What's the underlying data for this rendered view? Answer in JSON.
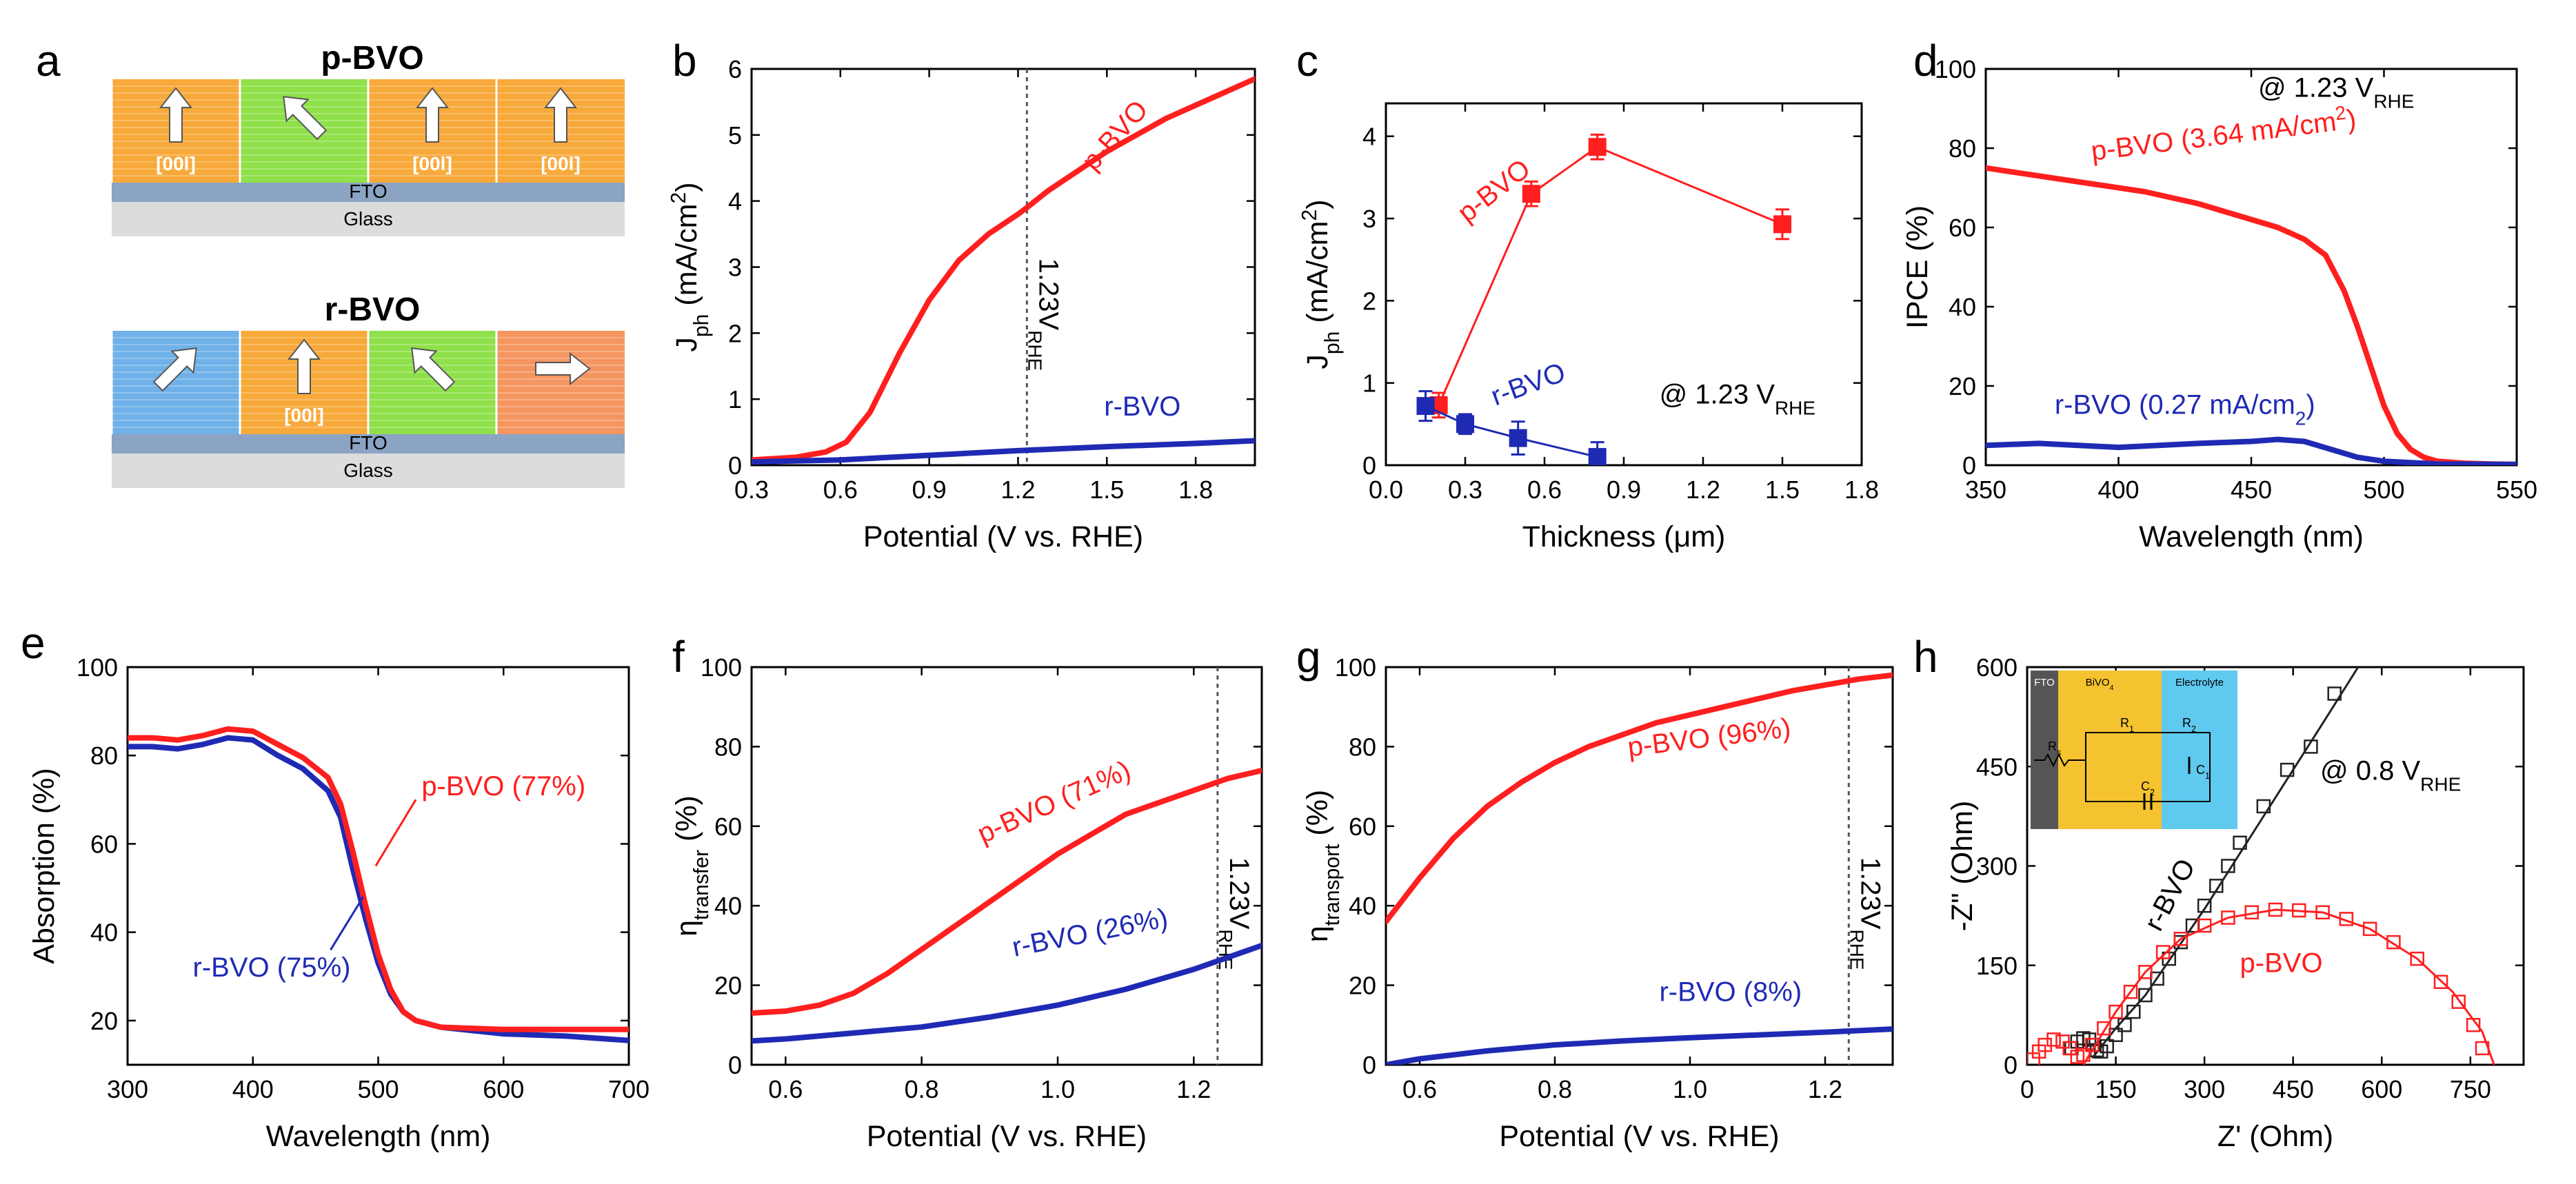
{
  "colors": {
    "p_bvo": "#ff1f1f",
    "r_bvo": "#1f2ab4",
    "orange": "#f7a93a",
    "green": "#8fe04a",
    "blue": "#6fb1e8",
    "coral": "#f59661",
    "fto": "#8ba4c4",
    "glass": "#dcdcdc",
    "ref_line": "#555555",
    "inset_bg_yellow": "#f5c330",
    "inset_bg_cyan": "#5fc9ef"
  },
  "panel_letters": {
    "a": "a",
    "b": "b",
    "c": "c",
    "d": "d",
    "e": "e",
    "f": "f",
    "g": "g",
    "h": "h"
  },
  "schematic": {
    "top_title": "p-BVO",
    "bottom_title": "r-BVO",
    "fto_label": "FTO",
    "glass_label": "Glass",
    "dir_label": "[00l]",
    "top_columns": [
      {
        "color": "orange",
        "arrow": "up",
        "label": "[00l]"
      },
      {
        "color": "green",
        "arrow": "up-left",
        "label": ""
      },
      {
        "color": "orange",
        "arrow": "up",
        "label": "[00l]"
      },
      {
        "color": "orange",
        "arrow": "up",
        "label": "[00l]"
      }
    ],
    "bottom_columns": [
      {
        "color": "blue",
        "arrow": "up-right",
        "label": ""
      },
      {
        "color": "orange",
        "arrow": "up",
        "label": "[00l]"
      },
      {
        "color": "green",
        "arrow": "up-left",
        "label": ""
      },
      {
        "color": "coral",
        "arrow": "right",
        "label": ""
      }
    ]
  },
  "chart_data": [
    {
      "id": "b",
      "type": "line",
      "xlabel": "Potential (V vs. RHE)",
      "ylabel": "J",
      "ylabel_sub": "ph",
      "ylabel_unit": " (mA/cm",
      "ylabel_sup": "2",
      "ylabel_end": ")",
      "xlim": [
        0.3,
        2.0
      ],
      "ylim": [
        0,
        6
      ],
      "xticks": [
        "0.3",
        "0.6",
        "0.9",
        "1.2",
        "1.5",
        "1.8"
      ],
      "xtick_values": [
        0.3,
        0.6,
        0.9,
        1.2,
        1.5,
        1.8
      ],
      "yticks": [
        "0",
        "1",
        "2",
        "3",
        "4",
        "5",
        "6"
      ],
      "ytick_values": [
        0,
        1,
        2,
        3,
        4,
        5,
        6
      ],
      "vline": {
        "x": 1.23,
        "label": "1.23V",
        "label_sub": "RHE"
      },
      "series": [
        {
          "name": "p-BVO",
          "color": "p_bvo",
          "x": [
            0.3,
            0.45,
            0.55,
            0.62,
            0.7,
            0.8,
            0.9,
            1.0,
            1.1,
            1.2,
            1.23,
            1.3,
            1.4,
            1.5,
            1.6,
            1.7,
            1.8,
            1.9,
            2.0
          ],
          "y": [
            0.08,
            0.12,
            0.2,
            0.35,
            0.8,
            1.7,
            2.5,
            3.1,
            3.5,
            3.8,
            3.9,
            4.15,
            4.45,
            4.75,
            5.0,
            5.25,
            5.45,
            5.65,
            5.85
          ]
        },
        {
          "name": "r-BVO",
          "color": "r_bvo",
          "x": [
            0.3,
            0.6,
            0.9,
            1.2,
            1.5,
            1.8,
            2.0
          ],
          "y": [
            0.05,
            0.08,
            0.15,
            0.22,
            0.28,
            0.33,
            0.37
          ]
        }
      ],
      "annotations": [
        {
          "text": "p-BVO",
          "color": "p_bvo",
          "x": 1.55,
          "y": 4.9,
          "rotate": -48
        },
        {
          "text": "r-BVO",
          "color": "r_bvo",
          "x": 1.62,
          "y": 0.75,
          "rotate": 0
        }
      ]
    },
    {
      "id": "c",
      "type": "scatter",
      "xlabel": "Thickness (μm)",
      "ylabel": "J",
      "ylabel_sub": "ph",
      "ylabel_unit": " (mA/cm",
      "ylabel_sup": "2",
      "ylabel_end": ")",
      "xlim": [
        0.0,
        1.8
      ],
      "ylim": [
        0,
        4.4
      ],
      "xticks": [
        "0.0",
        "0.3",
        "0.6",
        "0.9",
        "1.2",
        "1.5",
        "1.8"
      ],
      "xtick_values": [
        0.0,
        0.3,
        0.6,
        0.9,
        1.2,
        1.5,
        1.8
      ],
      "yticks": [
        "0",
        "1",
        "2",
        "3",
        "4"
      ],
      "ytick_values": [
        0,
        1,
        2,
        3,
        4
      ],
      "series": [
        {
          "name": "p-BVO",
          "color": "p_bvo",
          "x": [
            0.2,
            0.55,
            0.8,
            1.5
          ],
          "y": [
            0.73,
            3.3,
            3.87,
            2.93
          ],
          "err": [
            0.15,
            0.15,
            0.15,
            0.18
          ]
        },
        {
          "name": "r-BVO",
          "color": "r_bvo",
          "x": [
            0.15,
            0.3,
            0.5,
            0.8
          ],
          "y": [
            0.72,
            0.5,
            0.33,
            0.1
          ],
          "err": [
            0.18,
            0.12,
            0.2,
            0.18
          ]
        }
      ],
      "annotations": [
        {
          "text": "p-BVO",
          "color": "p_bvo",
          "x": 0.43,
          "y": 3.25,
          "rotate": -38
        },
        {
          "text": "r-BVO",
          "color": "r_bvo",
          "x": 0.55,
          "y": 0.88,
          "rotate": -20
        }
      ],
      "condition": {
        "text": "@ 1.23 V",
        "sub": "RHE",
        "x": 1.33,
        "y": 0.75
      }
    },
    {
      "id": "d",
      "type": "line",
      "xlabel": "Wavelength (nm)",
      "ylabel": "IPCE (%)",
      "xlim": [
        350,
        550
      ],
      "ylim": [
        0,
        100
      ],
      "xticks": [
        "350",
        "400",
        "450",
        "500",
        "550"
      ],
      "xtick_values": [
        350,
        400,
        450,
        500,
        550
      ],
      "yticks": [
        "0",
        "20",
        "40",
        "60",
        "80",
        "100"
      ],
      "ytick_values": [
        0,
        20,
        40,
        60,
        80,
        100
      ],
      "series": [
        {
          "name": "p-BVO",
          "color": "p_bvo",
          "x": [
            350,
            370,
            390,
            410,
            430,
            450,
            460,
            470,
            478,
            485,
            490,
            495,
            500,
            505,
            510,
            515,
            520,
            530,
            540,
            550
          ],
          "y": [
            75,
            73,
            71,
            69,
            66,
            62,
            60,
            57,
            53,
            44,
            35,
            25,
            15,
            8,
            4,
            2,
            1,
            0.5,
            0.3,
            0.2
          ]
        },
        {
          "name": "r-BVO",
          "color": "r_bvo",
          "x": [
            350,
            370,
            400,
            430,
            450,
            460,
            470,
            480,
            490,
            500,
            520,
            550
          ],
          "y": [
            5,
            5.5,
            4.5,
            5.5,
            6,
            6.5,
            6,
            4,
            2,
            1,
            0.3,
            0.2
          ]
        }
      ],
      "annotations": [
        {
          "text": "p-BVO (3.64 mA/cm",
          "text_sup": "2",
          "text_end": ")",
          "color": "p_bvo",
          "x": 440,
          "y": 81,
          "rotate": -7
        },
        {
          "text": "r-BVO (0.27 mA/cm",
          "text_sub": "2",
          "text_end": ")",
          "color": "r_bvo",
          "x": 425,
          "y": 13,
          "rotate": 0
        }
      ],
      "condition": {
        "text": "@ 1.23 V",
        "sub": "RHE",
        "x": 482,
        "y": 93
      }
    },
    {
      "id": "e",
      "type": "line",
      "xlabel": "Wavelength (nm)",
      "ylabel": "Absorption (%)",
      "xlim": [
        300,
        700
      ],
      "ylim": [
        10,
        100
      ],
      "xticks": [
        "300",
        "400",
        "500",
        "600",
        "700"
      ],
      "xtick_values": [
        300,
        400,
        500,
        600,
        700
      ],
      "yticks": [
        "20",
        "40",
        "60",
        "80",
        "100"
      ],
      "ytick_values": [
        20,
        40,
        60,
        80,
        100
      ],
      "series": [
        {
          "name": "r-BVO",
          "color": "r_bvo",
          "x": [
            300,
            320,
            340,
            360,
            380,
            400,
            420,
            440,
            460,
            470,
            480,
            490,
            500,
            510,
            520,
            530,
            550,
            600,
            650,
            700
          ],
          "y": [
            82,
            82,
            81.5,
            82.5,
            84,
            83.5,
            80,
            77,
            72,
            66,
            54,
            43,
            33,
            26,
            22,
            20,
            18.5,
            17,
            16.5,
            15.5
          ]
        },
        {
          "name": "p-BVO",
          "color": "p_bvo",
          "x": [
            300,
            320,
            340,
            360,
            380,
            400,
            420,
            440,
            460,
            470,
            480,
            490,
            500,
            510,
            520,
            530,
            550,
            600,
            650,
            700
          ],
          "y": [
            84,
            84,
            83.5,
            84.5,
            86,
            85.5,
            82.5,
            79.5,
            75,
            69,
            58,
            46,
            35,
            27,
            22,
            20,
            18.5,
            18,
            18,
            18
          ]
        }
      ],
      "annotations": [
        {
          "text": "p-BVO (77%)",
          "color": "p_bvo",
          "x": 600,
          "y": 71,
          "rotate": 0
        },
        {
          "text": "r-BVO (75%)",
          "color": "r_bvo",
          "x": 415,
          "y": 30,
          "rotate": 0
        }
      ],
      "pointers": [
        {
          "color": "p_bvo",
          "x1": 530,
          "y1": 70,
          "x2": 498,
          "y2": 55
        },
        {
          "color": "r_bvo",
          "x1": 462,
          "y1": 36,
          "x2": 488,
          "y2": 48
        }
      ]
    },
    {
      "id": "f",
      "type": "line",
      "xlabel": "Potential (V vs. RHE)",
      "ylabel": "η",
      "ylabel_sub": "transfer",
      "ylabel_end": " (%)",
      "xlim": [
        0.55,
        1.3
      ],
      "ylim": [
        0,
        100
      ],
      "xticks": [
        "0.6",
        "0.8",
        "1.0",
        "1.2"
      ],
      "xtick_values": [
        0.6,
        0.8,
        1.0,
        1.2
      ],
      "yticks": [
        "0",
        "20",
        "40",
        "60",
        "80",
        "100"
      ],
      "ytick_values": [
        0,
        20,
        40,
        60,
        80,
        100
      ],
      "vline": {
        "x": 1.235,
        "label": "1.23V",
        "label_sub": "RHE"
      },
      "series": [
        {
          "name": "p-BVO",
          "color": "p_bvo",
          "x": [
            0.55,
            0.6,
            0.65,
            0.7,
            0.75,
            0.8,
            0.85,
            0.9,
            0.95,
            1.0,
            1.05,
            1.1,
            1.15,
            1.2,
            1.25,
            1.3
          ],
          "y": [
            13,
            13.5,
            15,
            18,
            23,
            29,
            35,
            41,
            47,
            53,
            58,
            63,
            66,
            69,
            72,
            74
          ]
        },
        {
          "name": "r-BVO",
          "color": "r_bvo",
          "x": [
            0.55,
            0.6,
            0.7,
            0.8,
            0.9,
            1.0,
            1.1,
            1.2,
            1.25,
            1.3
          ],
          "y": [
            6,
            6.5,
            8,
            9.5,
            12,
            15,
            19,
            24,
            27,
            30
          ]
        }
      ],
      "annotations": [
        {
          "text": "p-BVO (71%)",
          "color": "p_bvo",
          "x": 1.0,
          "y": 64,
          "rotate": -24
        },
        {
          "text": "r-BVO (26%)",
          "color": "r_bvo",
          "x": 1.05,
          "y": 31,
          "rotate": -11
        }
      ]
    },
    {
      "id": "g",
      "type": "line",
      "xlabel": "Potential (V vs. RHE)",
      "ylabel": "η",
      "ylabel_sub": "transport",
      "ylabel_end": " (%)",
      "xlim": [
        0.55,
        1.3
      ],
      "ylim": [
        0,
        100
      ],
      "xticks": [
        "0.6",
        "0.8",
        "1.0",
        "1.2"
      ],
      "xtick_values": [
        0.6,
        0.8,
        1.0,
        1.2
      ],
      "yticks": [
        "0",
        "20",
        "40",
        "60",
        "80",
        "100"
      ],
      "ytick_values": [
        0,
        20,
        40,
        60,
        80,
        100
      ],
      "vline": {
        "x": 1.235,
        "label": "1.23V",
        "label_sub": "RHE"
      },
      "series": [
        {
          "name": "p-BVO",
          "color": "p_bvo",
          "x": [
            0.55,
            0.6,
            0.65,
            0.7,
            0.75,
            0.8,
            0.85,
            0.9,
            0.95,
            1.0,
            1.05,
            1.1,
            1.15,
            1.2,
            1.25,
            1.3
          ],
          "y": [
            36,
            47,
            57,
            65,
            71,
            76,
            80,
            83,
            86,
            88,
            90,
            92,
            94,
            95.5,
            97,
            98
          ]
        },
        {
          "name": "r-BVO",
          "color": "r_bvo",
          "x": [
            0.55,
            0.6,
            0.7,
            0.8,
            0.9,
            1.0,
            1.1,
            1.2,
            1.3
          ],
          "y": [
            0,
            1.5,
            3.5,
            5,
            6,
            6.8,
            7.5,
            8.2,
            9
          ]
        }
      ],
      "annotations": [
        {
          "text": "p-BVO (96%)",
          "color": "p_bvo",
          "x": 1.03,
          "y": 80,
          "rotate": -7
        },
        {
          "text": "r-BVO (8%)",
          "color": "r_bvo",
          "x": 1.06,
          "y": 16,
          "rotate": 0
        }
      ]
    },
    {
      "id": "h",
      "type": "scatter",
      "xlabel": "Z' (Ohm)",
      "ylabel": "-Z\" (Ohm)",
      "xlim": [
        0,
        840
      ],
      "ylim": [
        0,
        600
      ],
      "xticks": [
        "0",
        "150",
        "300",
        "450",
        "600",
        "750"
      ],
      "xtick_values": [
        0,
        150,
        300,
        450,
        600,
        750
      ],
      "yticks": [
        "0",
        "150",
        "300",
        "450",
        "600"
      ],
      "ytick_values": [
        0,
        150,
        300,
        450,
        600
      ],
      "series": [
        {
          "name": "r-BVO",
          "color": "#222222",
          "x": [
            75,
            85,
            95,
            105,
            112,
            118,
            125,
            135,
            150,
            165,
            180,
            200,
            220,
            240,
            260,
            280,
            300,
            320,
            340,
            360,
            400,
            440,
            480,
            520
          ],
          "y": [
            25,
            35,
            40,
            38,
            30,
            22,
            20,
            28,
            45,
            60,
            80,
            105,
            130,
            160,
            185,
            210,
            240,
            270,
            300,
            335,
            390,
            445,
            480,
            560
          ],
          "fit_x": [
            110,
            150,
            200,
            300,
            400,
            500,
            560
          ],
          "fit_y": [
            10,
            55,
            105,
            235,
            375,
            515,
            600
          ]
        },
        {
          "name": "p-BVO",
          "color": "p_bvo",
          "x": [
            10,
            20,
            30,
            45,
            60,
            72,
            85,
            95,
            110,
            130,
            150,
            175,
            200,
            230,
            260,
            300,
            340,
            380,
            420,
            460,
            500,
            540,
            580,
            620,
            660,
            700,
            730,
            755,
            770
          ],
          "y": [
            8,
            20,
            30,
            38,
            35,
            25,
            12,
            15,
            30,
            55,
            80,
            110,
            140,
            170,
            190,
            210,
            222,
            230,
            234,
            233,
            230,
            220,
            205,
            185,
            160,
            125,
            95,
            60,
            25
          ],
          "fit_x": [
            95,
            150,
            200,
            260,
            340,
            420,
            500,
            580,
            660,
            720,
            770,
            790
          ],
          "fit_y": [
            0,
            80,
            140,
            190,
            222,
            234,
            230,
            205,
            160,
            110,
            50,
            0
          ]
        }
      ],
      "annotations": [
        {
          "text": "r-BVO",
          "color": "#000000",
          "x": 255,
          "y": 250,
          "rotate": -62
        },
        {
          "text": "p-BVO",
          "color": "p_bvo",
          "x": 430,
          "y": 140,
          "rotate": 0
        }
      ],
      "condition": {
        "text": "@ 0.8 V",
        "sub": "RHE",
        "x": 615,
        "y": 430
      },
      "inset": {
        "labels": [
          "FTO",
          "BiVO",
          "Electrolyte"
        ],
        "bivo_sub": "4",
        "circuit_labels": [
          "R",
          "s",
          "R",
          "1",
          "R",
          "2",
          "C",
          "1",
          "C",
          "2"
        ]
      }
    }
  ]
}
